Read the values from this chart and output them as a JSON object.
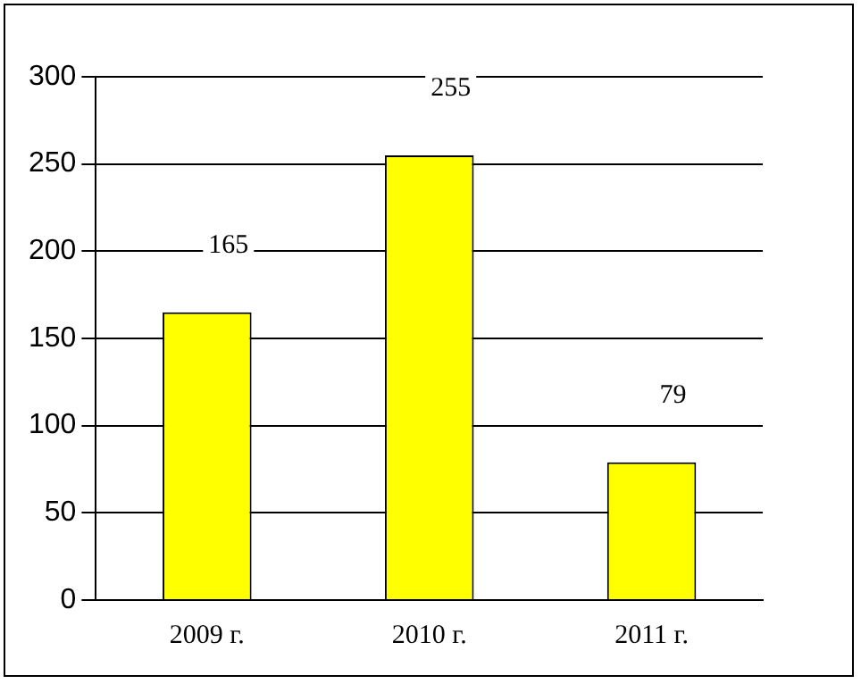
{
  "chart_data": {
    "type": "bar",
    "categories": [
      "2009 г.",
      "2010 г.",
      "2011 г."
    ],
    "values": [
      165,
      255,
      79
    ],
    "color": "#ffff00",
    "ylim": [
      0,
      300
    ],
    "yticks": [
      0,
      50,
      100,
      150,
      200,
      250,
      300
    ],
    "grid": "y",
    "data_labels": true,
    "legend": false
  }
}
